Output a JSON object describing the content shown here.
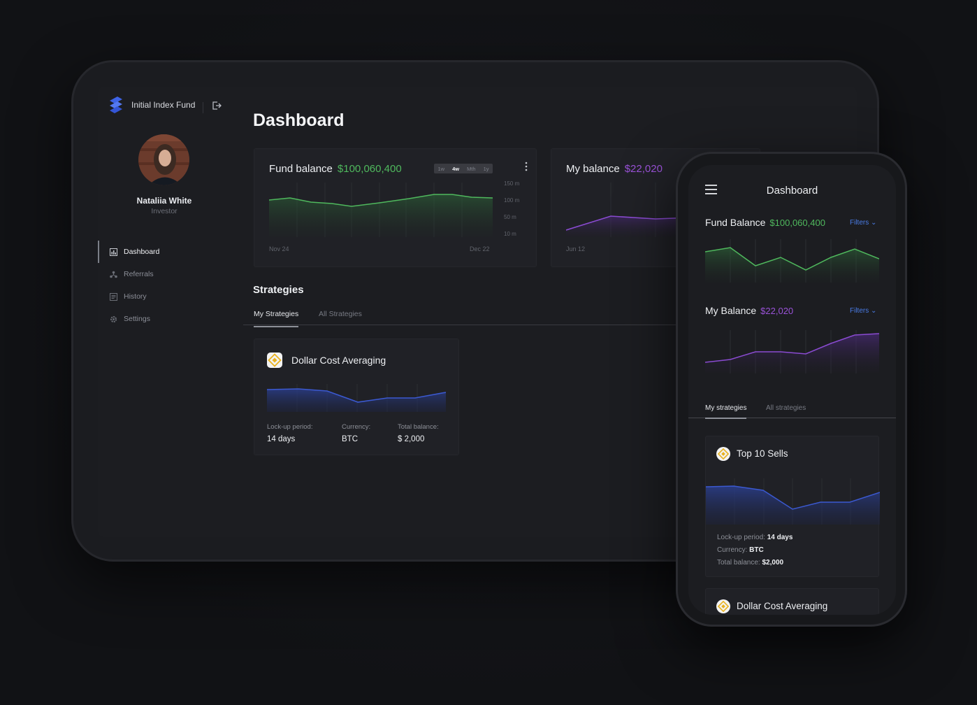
{
  "app": {
    "brand": "Initial Index Fund"
  },
  "user": {
    "name": "Nataliia White",
    "role": "Investor"
  },
  "nav": [
    {
      "label": "Dashboard",
      "icon": "chart-icon",
      "active": true
    },
    {
      "label": "Referrals",
      "icon": "referrals-icon"
    },
    {
      "label": "History",
      "icon": "history-icon"
    },
    {
      "label": "Settings",
      "icon": "gear-icon"
    }
  ],
  "page": {
    "title": "Dashboard"
  },
  "fund_balance": {
    "label": "Fund balance",
    "value": "$100,060,400",
    "ranges": [
      "1w",
      "4w",
      "Mth",
      "1y"
    ],
    "selected_range": "4w",
    "y_ticks": [
      "150 m",
      "100 m",
      "50 m",
      "10 m"
    ],
    "x_start": "Nov 24",
    "x_end": "Dec 22"
  },
  "my_balance": {
    "label": "My balance",
    "value": "$22,020",
    "x_start": "Jun 12"
  },
  "strategies": {
    "title": "Strategies",
    "tabs": [
      "My Strategies",
      "All Strategies"
    ],
    "card": {
      "name": "Dollar Cost Averaging",
      "lockup_label": "Lock-up period:",
      "lockup_value": "14 days",
      "currency_label": "Currency:",
      "currency_value": "BTC",
      "total_label": "Total balance:",
      "total_value": "$ 2,000"
    }
  },
  "phone": {
    "title": "Dashboard",
    "fund": {
      "label": "Fund Balance",
      "value": "$100,060,400",
      "filters": "Filters"
    },
    "my": {
      "label": "My Balance",
      "value": "$22,020",
      "filters": "Filters"
    },
    "tabs": [
      "My strategies",
      "All strategies"
    ],
    "card1": {
      "name": "Top 10 Sells",
      "lockup_label": "Lock-up period:",
      "lockup_value": "14 days",
      "currency_label": "Currency:",
      "currency_value": "BTC",
      "total_label": "Total balance:",
      "total_value": "$2,000"
    },
    "card2": {
      "name": "Dollar Cost Averaging"
    }
  },
  "colors": {
    "green": "#4fb85d",
    "purple": "#9a52d8",
    "blue": "#3a55c8",
    "accent_link": "#4a7ce6"
  }
}
